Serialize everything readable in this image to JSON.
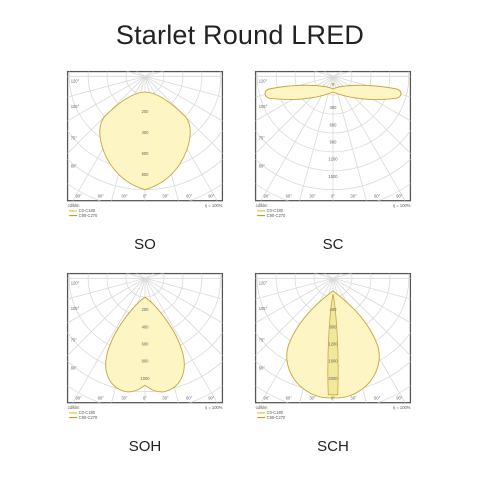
{
  "title": "Starlet Round LRED",
  "colors": {
    "fill": "#fdf6c4",
    "stroke": "#c9a640",
    "inner": "#f3e79c"
  },
  "panels": [
    {
      "id": "p1",
      "caption": "SO",
      "angle_labels": [
        "90°",
        "60°",
        "30°",
        "0°",
        "30°",
        "60°",
        "90°"
      ],
      "side_labels": [
        "120°",
        "105°",
        "75°",
        "60°"
      ],
      "ring_labels": [
        "200",
        "400",
        "600",
        "800"
      ],
      "unit_label": "cd/klm",
      "eta_label": "η = 100%",
      "legend": [
        "C0-C180",
        "C90-C270"
      ],
      "shape": "so"
    },
    {
      "id": "p2",
      "caption": "SC",
      "angle_labels": [
        "90°",
        "60°",
        "30°",
        "0°",
        "30°",
        "60°",
        "90°"
      ],
      "side_labels": [
        "120°",
        "105°",
        "75°",
        "60°"
      ],
      "ring_labels": [
        "300",
        "600",
        "900",
        "1200",
        "1500"
      ],
      "unit_label": "cd/klm",
      "eta_label": "η = 100%",
      "legend": [
        "C0-C180",
        "C90-C270"
      ],
      "shape": "sc"
    },
    {
      "id": "p3",
      "caption": "SOH",
      "angle_labels": [
        "90°",
        "60°",
        "30°",
        "0°",
        "30°",
        "60°",
        "90°"
      ],
      "side_labels": [
        "120°",
        "105°",
        "75°",
        "60°"
      ],
      "ring_labels": [
        "200",
        "400",
        "600",
        "800",
        "1000"
      ],
      "unit_label": "cd/klm",
      "eta_label": "η = 100%",
      "legend": [
        "C0-C180",
        "C90-C270"
      ],
      "shape": "soh"
    },
    {
      "id": "p4",
      "caption": "SCH",
      "angle_labels": [
        "90°",
        "60°",
        "30°",
        "0°",
        "30°",
        "60°",
        "90°"
      ],
      "side_labels": [
        "120°",
        "105°",
        "75°",
        "60°"
      ],
      "ring_labels": [
        "400",
        "800",
        "1200",
        "1600",
        "2000"
      ],
      "unit_label": "cd/klm",
      "eta_label": "η = 100%",
      "legend": [
        "C0-C180",
        "C90-C270"
      ],
      "shape": "sch"
    }
  ]
}
